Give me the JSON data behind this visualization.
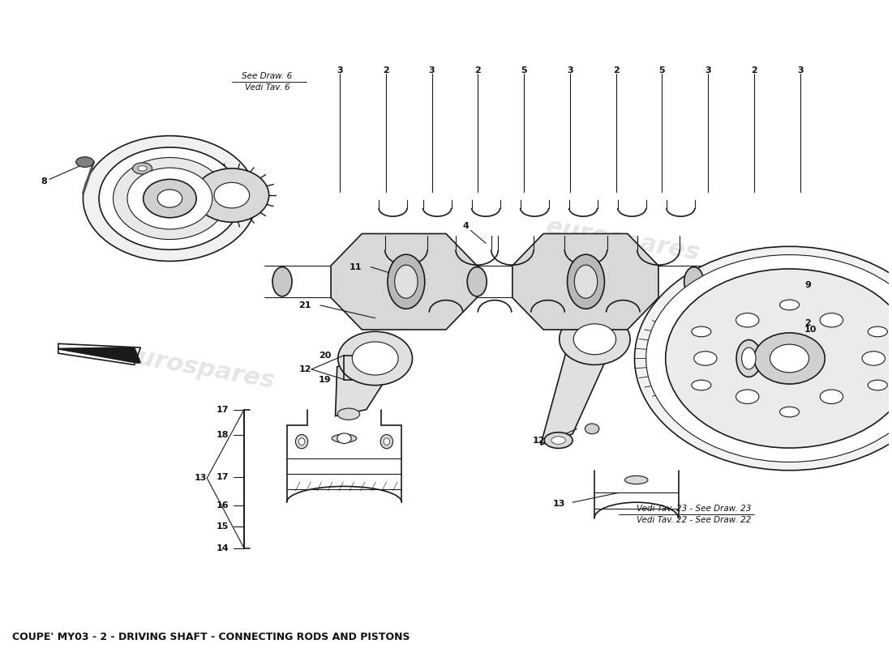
{
  "title": "COUPE' MY03 - 2 - DRIVING SHAFT - CONNECTING RODS AND PISTONS",
  "title_fontsize": 9,
  "bg_color": "#ffffff",
  "line_color": "#1a1a1a",
  "text_color": "#111111",
  "watermark_text": "eurospares",
  "ref_note_top": [
    "Vedi Tav. 22 - See Draw. 22",
    "Vedi Tav. 23 - See Draw. 23"
  ],
  "ref_note_bottom_label": [
    "Vedi Tav. 6",
    "See Draw. 6"
  ],
  "bottom_labels": [
    "3",
    "2",
    "3",
    "2",
    "5",
    "3",
    "2",
    "5",
    "3",
    "2",
    "3"
  ]
}
